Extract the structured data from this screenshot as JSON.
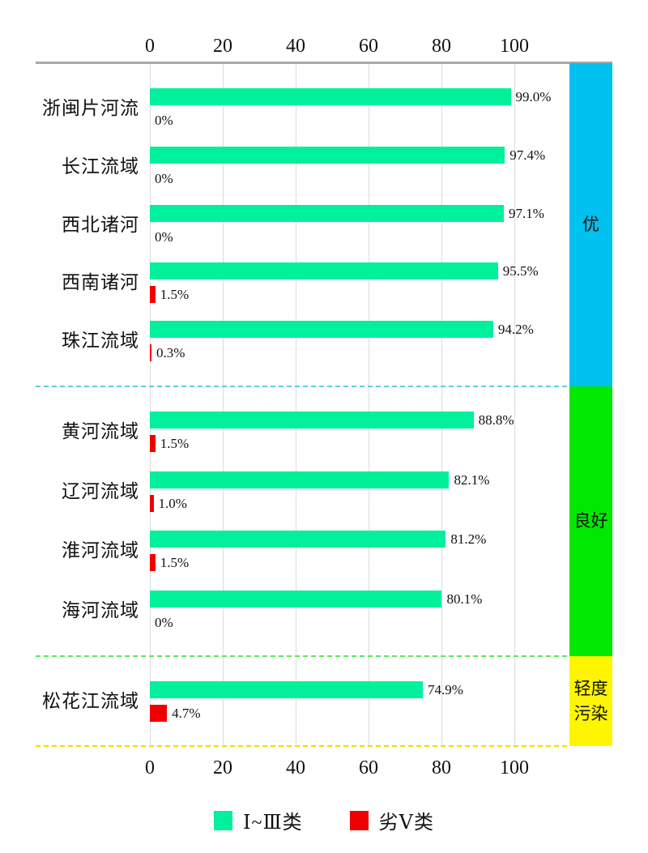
{
  "chart_data": {
    "type": "bar",
    "orientation": "horizontal",
    "x_axis": {
      "ticks": [
        0,
        20,
        40,
        60,
        80,
        100
      ],
      "tick_labels": [
        "0",
        "20",
        "40",
        "60",
        "80",
        "100"
      ],
      "range": [
        0,
        115
      ],
      "shown_on": "top and bottom",
      "grid": true
    },
    "series_names": [
      "Ⅰ~Ⅲ类",
      "劣Ⅴ类"
    ],
    "sections": [
      {
        "band_label": "优",
        "band_label_lines": [
          "优"
        ],
        "band_color": "#00c1f0",
        "divider_color": "#62cbe8",
        "rows": [
          {
            "basin": "浙闽片河流",
            "good": 99.0,
            "good_label": "99.0%",
            "bad": 0,
            "bad_label": "0%"
          },
          {
            "basin": "长江流域",
            "good": 97.4,
            "good_label": "97.4%",
            "bad": 0,
            "bad_label": "0%"
          },
          {
            "basin": "西北诸河",
            "good": 97.1,
            "good_label": "97.1%",
            "bad": 0,
            "bad_label": "0%"
          },
          {
            "basin": "西南诸河",
            "good": 95.5,
            "good_label": "95.5%",
            "bad": 1.5,
            "bad_label": "1.5%"
          },
          {
            "basin": "珠江流域",
            "good": 94.2,
            "good_label": "94.2%",
            "bad": 0.3,
            "bad_label": "0.3%"
          }
        ]
      },
      {
        "band_label": "良好",
        "band_label_lines": [
          "良好"
        ],
        "band_color": "#00e900",
        "divider_color": "#5ce85c",
        "rows": [
          {
            "basin": "黄河流域",
            "good": 88.8,
            "good_label": "88.8%",
            "bad": 1.5,
            "bad_label": "1.5%"
          },
          {
            "basin": "辽河流域",
            "good": 82.1,
            "good_label": "82.1%",
            "bad": 1.0,
            "bad_label": "1.0%"
          },
          {
            "basin": "淮河流域",
            "good": 81.2,
            "good_label": "81.2%",
            "bad": 1.5,
            "bad_label": "1.5%"
          },
          {
            "basin": "海河流域",
            "good": 80.1,
            "good_label": "80.1%",
            "bad": 0,
            "bad_label": "0%"
          }
        ]
      },
      {
        "band_label": "轻度污染",
        "band_label_lines": [
          "轻度",
          "污染"
        ],
        "band_color": "#fff500",
        "divider_color": "#eede00",
        "rows": [
          {
            "basin": "松花江流域",
            "good": 74.9,
            "good_label": "74.9%",
            "bad": 4.7,
            "bad_label": "4.7%"
          }
        ]
      }
    ],
    "legend": {
      "items": [
        {
          "label": "Ⅰ~Ⅲ类",
          "color": "#00f09b"
        },
        {
          "label": "劣Ⅴ类",
          "color": "#ee0000"
        }
      ],
      "position": "bottom center"
    },
    "colors": {
      "good_bar": "#00f09b",
      "bad_bar": "#ee0000",
      "axis_line": "#a9a9a9",
      "gridline": "#dcdcdc"
    }
  }
}
